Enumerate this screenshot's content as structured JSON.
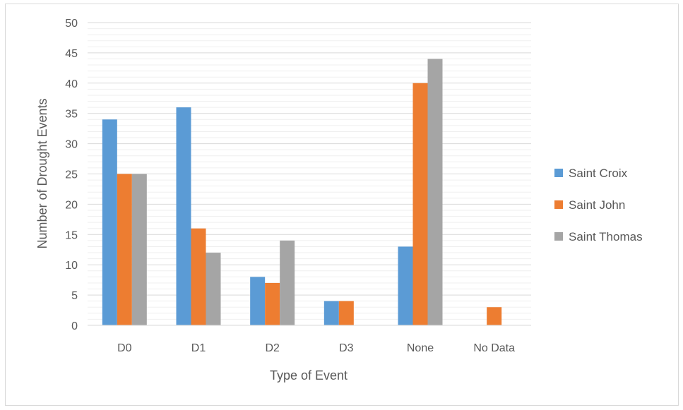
{
  "chart_data": {
    "type": "bar",
    "categories": [
      "D0",
      "D1",
      "D2",
      "D3",
      "None",
      "No Data"
    ],
    "series": [
      {
        "name": "Saint Croix",
        "color": "#5b9bd5",
        "values": [
          34,
          36,
          8,
          4,
          13,
          0
        ]
      },
      {
        "name": "Saint John",
        "color": "#ed7d31",
        "values": [
          25,
          16,
          7,
          4,
          40,
          3
        ]
      },
      {
        "name": "Saint Thomas",
        "color": "#a5a5a5",
        "values": [
          25,
          12,
          14,
          0,
          44,
          0
        ]
      }
    ],
    "title": "",
    "xlabel": "Type of Event",
    "ylabel": "Number  of Drought Events",
    "ylim": [
      0,
      50
    ],
    "ytick_step": 5,
    "grid": true,
    "legend_position": "right"
  }
}
